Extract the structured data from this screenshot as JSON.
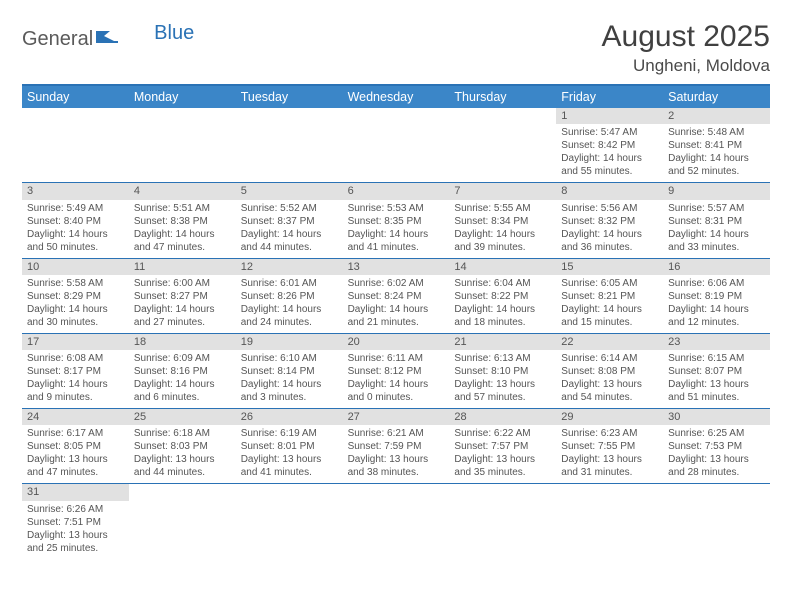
{
  "logo": {
    "text1": "General",
    "text2": "Blue"
  },
  "title": "August 2025",
  "location": "Ungheni, Moldova",
  "accent_color": "#2a72b5",
  "header_bg": "#3b86c8",
  "day_bg": "#e1e1e1",
  "days": [
    "Sunday",
    "Monday",
    "Tuesday",
    "Wednesday",
    "Thursday",
    "Friday",
    "Saturday"
  ],
  "weeks": [
    [
      {
        "n": "",
        "sr": "",
        "ss": "",
        "dl": ""
      },
      {
        "n": "",
        "sr": "",
        "ss": "",
        "dl": ""
      },
      {
        "n": "",
        "sr": "",
        "ss": "",
        "dl": ""
      },
      {
        "n": "",
        "sr": "",
        "ss": "",
        "dl": ""
      },
      {
        "n": "",
        "sr": "",
        "ss": "",
        "dl": ""
      },
      {
        "n": "1",
        "sr": "Sunrise: 5:47 AM",
        "ss": "Sunset: 8:42 PM",
        "dl": "Daylight: 14 hours and 55 minutes."
      },
      {
        "n": "2",
        "sr": "Sunrise: 5:48 AM",
        "ss": "Sunset: 8:41 PM",
        "dl": "Daylight: 14 hours and 52 minutes."
      }
    ],
    [
      {
        "n": "3",
        "sr": "Sunrise: 5:49 AM",
        "ss": "Sunset: 8:40 PM",
        "dl": "Daylight: 14 hours and 50 minutes."
      },
      {
        "n": "4",
        "sr": "Sunrise: 5:51 AM",
        "ss": "Sunset: 8:38 PM",
        "dl": "Daylight: 14 hours and 47 minutes."
      },
      {
        "n": "5",
        "sr": "Sunrise: 5:52 AM",
        "ss": "Sunset: 8:37 PM",
        "dl": "Daylight: 14 hours and 44 minutes."
      },
      {
        "n": "6",
        "sr": "Sunrise: 5:53 AM",
        "ss": "Sunset: 8:35 PM",
        "dl": "Daylight: 14 hours and 41 minutes."
      },
      {
        "n": "7",
        "sr": "Sunrise: 5:55 AM",
        "ss": "Sunset: 8:34 PM",
        "dl": "Daylight: 14 hours and 39 minutes."
      },
      {
        "n": "8",
        "sr": "Sunrise: 5:56 AM",
        "ss": "Sunset: 8:32 PM",
        "dl": "Daylight: 14 hours and 36 minutes."
      },
      {
        "n": "9",
        "sr": "Sunrise: 5:57 AM",
        "ss": "Sunset: 8:31 PM",
        "dl": "Daylight: 14 hours and 33 minutes."
      }
    ],
    [
      {
        "n": "10",
        "sr": "Sunrise: 5:58 AM",
        "ss": "Sunset: 8:29 PM",
        "dl": "Daylight: 14 hours and 30 minutes."
      },
      {
        "n": "11",
        "sr": "Sunrise: 6:00 AM",
        "ss": "Sunset: 8:27 PM",
        "dl": "Daylight: 14 hours and 27 minutes."
      },
      {
        "n": "12",
        "sr": "Sunrise: 6:01 AM",
        "ss": "Sunset: 8:26 PM",
        "dl": "Daylight: 14 hours and 24 minutes."
      },
      {
        "n": "13",
        "sr": "Sunrise: 6:02 AM",
        "ss": "Sunset: 8:24 PM",
        "dl": "Daylight: 14 hours and 21 minutes."
      },
      {
        "n": "14",
        "sr": "Sunrise: 6:04 AM",
        "ss": "Sunset: 8:22 PM",
        "dl": "Daylight: 14 hours and 18 minutes."
      },
      {
        "n": "15",
        "sr": "Sunrise: 6:05 AM",
        "ss": "Sunset: 8:21 PM",
        "dl": "Daylight: 14 hours and 15 minutes."
      },
      {
        "n": "16",
        "sr": "Sunrise: 6:06 AM",
        "ss": "Sunset: 8:19 PM",
        "dl": "Daylight: 14 hours and 12 minutes."
      }
    ],
    [
      {
        "n": "17",
        "sr": "Sunrise: 6:08 AM",
        "ss": "Sunset: 8:17 PM",
        "dl": "Daylight: 14 hours and 9 minutes."
      },
      {
        "n": "18",
        "sr": "Sunrise: 6:09 AM",
        "ss": "Sunset: 8:16 PM",
        "dl": "Daylight: 14 hours and 6 minutes."
      },
      {
        "n": "19",
        "sr": "Sunrise: 6:10 AM",
        "ss": "Sunset: 8:14 PM",
        "dl": "Daylight: 14 hours and 3 minutes."
      },
      {
        "n": "20",
        "sr": "Sunrise: 6:11 AM",
        "ss": "Sunset: 8:12 PM",
        "dl": "Daylight: 14 hours and 0 minutes."
      },
      {
        "n": "21",
        "sr": "Sunrise: 6:13 AM",
        "ss": "Sunset: 8:10 PM",
        "dl": "Daylight: 13 hours and 57 minutes."
      },
      {
        "n": "22",
        "sr": "Sunrise: 6:14 AM",
        "ss": "Sunset: 8:08 PM",
        "dl": "Daylight: 13 hours and 54 minutes."
      },
      {
        "n": "23",
        "sr": "Sunrise: 6:15 AM",
        "ss": "Sunset: 8:07 PM",
        "dl": "Daylight: 13 hours and 51 minutes."
      }
    ],
    [
      {
        "n": "24",
        "sr": "Sunrise: 6:17 AM",
        "ss": "Sunset: 8:05 PM",
        "dl": "Daylight: 13 hours and 47 minutes."
      },
      {
        "n": "25",
        "sr": "Sunrise: 6:18 AM",
        "ss": "Sunset: 8:03 PM",
        "dl": "Daylight: 13 hours and 44 minutes."
      },
      {
        "n": "26",
        "sr": "Sunrise: 6:19 AM",
        "ss": "Sunset: 8:01 PM",
        "dl": "Daylight: 13 hours and 41 minutes."
      },
      {
        "n": "27",
        "sr": "Sunrise: 6:21 AM",
        "ss": "Sunset: 7:59 PM",
        "dl": "Daylight: 13 hours and 38 minutes."
      },
      {
        "n": "28",
        "sr": "Sunrise: 6:22 AM",
        "ss": "Sunset: 7:57 PM",
        "dl": "Daylight: 13 hours and 35 minutes."
      },
      {
        "n": "29",
        "sr": "Sunrise: 6:23 AM",
        "ss": "Sunset: 7:55 PM",
        "dl": "Daylight: 13 hours and 31 minutes."
      },
      {
        "n": "30",
        "sr": "Sunrise: 6:25 AM",
        "ss": "Sunset: 7:53 PM",
        "dl": "Daylight: 13 hours and 28 minutes."
      }
    ],
    [
      {
        "n": "31",
        "sr": "Sunrise: 6:26 AM",
        "ss": "Sunset: 7:51 PM",
        "dl": "Daylight: 13 hours and 25 minutes."
      },
      {
        "n": "",
        "sr": "",
        "ss": "",
        "dl": ""
      },
      {
        "n": "",
        "sr": "",
        "ss": "",
        "dl": ""
      },
      {
        "n": "",
        "sr": "",
        "ss": "",
        "dl": ""
      },
      {
        "n": "",
        "sr": "",
        "ss": "",
        "dl": ""
      },
      {
        "n": "",
        "sr": "",
        "ss": "",
        "dl": ""
      },
      {
        "n": "",
        "sr": "",
        "ss": "",
        "dl": ""
      }
    ]
  ]
}
